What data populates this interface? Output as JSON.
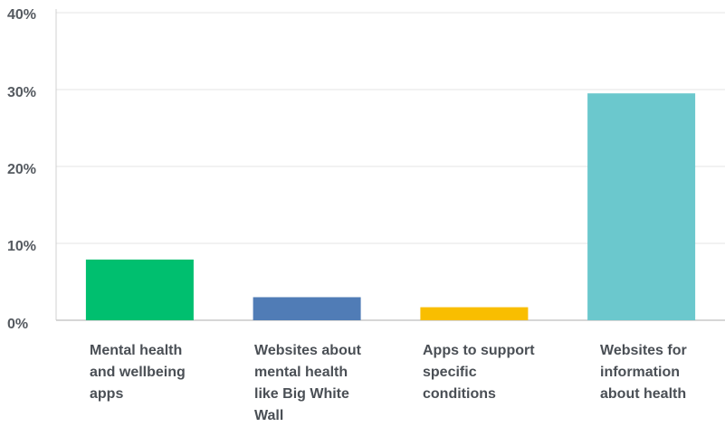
{
  "chart_data": {
    "type": "bar",
    "title": "",
    "xlabel": "",
    "ylabel": "",
    "ylim": [
      0,
      40
    ],
    "yticks": [
      {
        "value": 0,
        "label": "0%"
      },
      {
        "value": 10,
        "label": "10%"
      },
      {
        "value": 20,
        "label": "20%"
      },
      {
        "value": 30,
        "label": "30%"
      },
      {
        "value": 40,
        "label": "40%"
      }
    ],
    "grid": true,
    "legend": "none",
    "categories": [
      "Mental health and wellbeing apps",
      "Websites about mental health like Big White Wall",
      "Apps to support specific conditions",
      "Websites for information about health"
    ],
    "category_labels": [
      "Mental health\nand wellbeing\napps",
      "Websites about\nmental health\nlike Big White\nWall",
      "Apps to support\nspecific\nconditions",
      "Websites for\ninformation\nabout health"
    ],
    "values": [
      7.9,
      3.0,
      1.7,
      29.5
    ],
    "colors": [
      "#00bf6f",
      "#507cb6",
      "#f9be00",
      "#6bc8cd"
    ]
  }
}
